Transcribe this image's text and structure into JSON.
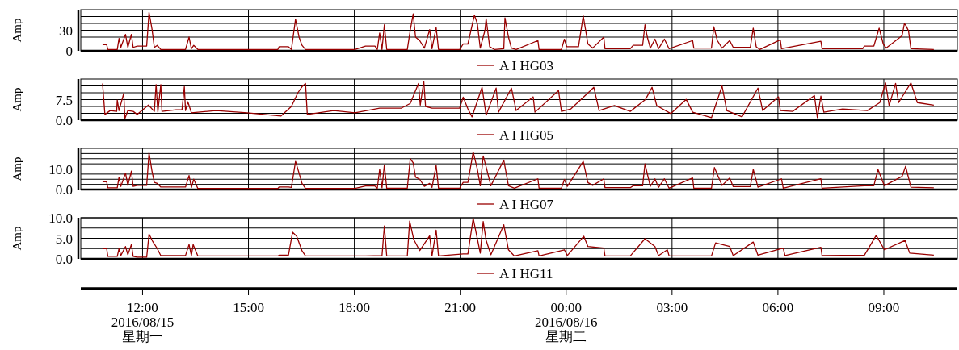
{
  "chart_data": [
    {
      "type": "line",
      "ylabel": "Amp",
      "xlim": [
        "2016-08-15T10:15",
        "2016-08-16T11:05"
      ],
      "ylim": [
        0,
        60
      ],
      "xticks": [
        "2016-08-15T12:00",
        "2016-08-15T15:00",
        "2016-08-15T18:00",
        "2016-08-15T21:00",
        "2016-08-16T00:00",
        "2016-08-16T03:00",
        "2016-08-16T06:00",
        "2016-08-16T09:00"
      ],
      "yticks": [
        {
          "value": 0,
          "label": "0"
        },
        {
          "value": 10,
          "label": null
        },
        {
          "value": 20,
          "label": null
        },
        {
          "value": 30,
          "label": "30"
        },
        {
          "value": 40,
          "label": null
        },
        {
          "value": 50,
          "label": null
        }
      ],
      "grid": true,
      "legend": "bottom",
      "tick_labels": "y",
      "series": [
        {
          "name": "A I HG03",
          "color": "#990000",
          "x": [
            "2016-08-15T10:52",
            "2016-08-15T10:59",
            "2016-08-15T11:01",
            "2016-08-15T11:17",
            "2016-08-15T11:20",
            "2016-08-15T11:23",
            "2016-08-15T11:31",
            "2016-08-15T11:35",
            "2016-08-15T11:41",
            "2016-08-15T11:44",
            "2016-08-15T11:51",
            "2016-08-15T12:07",
            "2016-08-15T12:11",
            "2016-08-15T12:16",
            "2016-08-15T12:20",
            "2016-08-15T12:25",
            "2016-08-15T12:31",
            "2016-08-15T13:13",
            "2016-08-15T13:19",
            "2016-08-15T13:23",
            "2016-08-15T13:27",
            "2016-08-15T13:34",
            "2016-08-15T15:50",
            "2016-08-15T15:52",
            "2016-08-15T16:08",
            "2016-08-15T16:13",
            "2016-08-15T16:20",
            "2016-08-15T16:26",
            "2016-08-15T16:31",
            "2016-08-15T16:37",
            "2016-08-15T18:01",
            "2016-08-15T18:19",
            "2016-08-15T18:35",
            "2016-08-15T18:39",
            "2016-08-15T18:43",
            "2016-08-15T18:47",
            "2016-08-15T18:51",
            "2016-08-15T18:55",
            "2016-08-15T19:30",
            "2016-08-15T19:35",
            "2016-08-15T19:40",
            "2016-08-15T19:44",
            "2016-08-15T19:51",
            "2016-08-15T19:59",
            "2016-08-15T20:08",
            "2016-08-15T20:12",
            "2016-08-15T20:19",
            "2016-08-15T20:23",
            "2016-08-15T20:59",
            "2016-08-15T21:05",
            "2016-08-15T21:13",
            "2016-08-15T21:24",
            "2016-08-15T21:29",
            "2016-08-15T21:34",
            "2016-08-15T21:42",
            "2016-08-15T21:44",
            "2016-08-15T21:50",
            "2016-08-15T21:58",
            "2016-08-15T22:14",
            "2016-08-15T22:16",
            "2016-08-15T22:22",
            "2016-08-15T22:27",
            "2016-08-15T22:35",
            "2016-08-15T23:12",
            "2016-08-15T23:14",
            "2016-08-15T23:52",
            "2016-08-15T23:57",
            "2016-08-16T00:01",
            "2016-08-16T00:21",
            "2016-08-16T00:29",
            "2016-08-16T00:37",
            "2016-08-16T00:45",
            "2016-08-16T01:04",
            "2016-08-16T01:06",
            "2016-08-16T01:49",
            "2016-08-16T01:54",
            "2016-08-16T02:10",
            "2016-08-16T02:14",
            "2016-08-16T02:18",
            "2016-08-16T02:23",
            "2016-08-16T02:31",
            "2016-08-16T02:37",
            "2016-08-16T02:47",
            "2016-08-16T02:55",
            "2016-08-16T03:35",
            "2016-08-16T03:37",
            "2016-08-16T04:07",
            "2016-08-16T04:11",
            "2016-08-16T04:17",
            "2016-08-16T04:25",
            "2016-08-16T04:38",
            "2016-08-16T04:44",
            "2016-08-16T05:13",
            "2016-08-16T05:18",
            "2016-08-16T05:23",
            "2016-08-16T05:29",
            "2016-08-16T06:04",
            "2016-08-16T06:06",
            "2016-08-16T07:13",
            "2016-08-16T07:15",
            "2016-08-16T08:24",
            "2016-08-16T08:27",
            "2016-08-16T08:43",
            "2016-08-16T08:52",
            "2016-08-16T08:59",
            "2016-08-16T09:04",
            "2016-08-16T09:31",
            "2016-08-16T09:35",
            "2016-08-16T09:38",
            "2016-08-16T09:42",
            "2016-08-16T09:46",
            "2016-08-16T10:25"
          ],
          "values": [
            9,
            9,
            2,
            2,
            18,
            5,
            24,
            5,
            24,
            5,
            7,
            7,
            56,
            32,
            5,
            8,
            2,
            2,
            20,
            3,
            8,
            2,
            2,
            6,
            6,
            2,
            46,
            20,
            8,
            2,
            2,
            7,
            7,
            2,
            26,
            2,
            38,
            2,
            2,
            30,
            54,
            20,
            15,
            4,
            31,
            3,
            34,
            2,
            2,
            10,
            10,
            52,
            40,
            4,
            30,
            47,
            6,
            2,
            3,
            48,
            20,
            4,
            2,
            15,
            2,
            2,
            17,
            6,
            6,
            51,
            10,
            4,
            20,
            3,
            3,
            8,
            8,
            38,
            20,
            4,
            17,
            3,
            17,
            3,
            15,
            4,
            4,
            35,
            15,
            4,
            15,
            5,
            5,
            33,
            6,
            2,
            16,
            3,
            14,
            3,
            3,
            7,
            7,
            33,
            10,
            4,
            22,
            40,
            36,
            29,
            3,
            2
          ]
        }
      ]
    },
    {
      "type": "line",
      "ylabel": "Amp",
      "xlim": [
        "2016-08-15T10:15",
        "2016-08-16T11:05"
      ],
      "ylim": [
        0,
        15
      ],
      "xticks": [
        "2016-08-15T12:00",
        "2016-08-15T15:00",
        "2016-08-15T18:00",
        "2016-08-15T21:00",
        "2016-08-16T00:00",
        "2016-08-16T03:00",
        "2016-08-16T06:00",
        "2016-08-16T09:00"
      ],
      "yticks": [
        {
          "value": 0,
          "label": "0.0"
        },
        {
          "value": 2.5,
          "label": null
        },
        {
          "value": 5,
          "label": null
        },
        {
          "value": 7.5,
          "label": "7.5"
        },
        {
          "value": 10,
          "label": null
        },
        {
          "value": 12.5,
          "label": null
        }
      ],
      "grid": true,
      "legend": "bottom",
      "tick_labels": "y",
      "series": [
        {
          "name": "A I HG05",
          "color": "#990000",
          "x": [
            "2016-08-15T10:52",
            "2016-08-15T10:56",
            "2016-08-15T11:05",
            "2016-08-15T11:16",
            "2016-08-15T11:17",
            "2016-08-15T11:20",
            "2016-08-15T11:28",
            "2016-08-15T11:30",
            "2016-08-15T11:35",
            "2016-08-15T11:44",
            "2016-08-15T11:51",
            "2016-08-15T12:10",
            "2016-08-15T12:20",
            "2016-08-15T12:23",
            "2016-08-15T12:26",
            "2016-08-15T12:31",
            "2016-08-15T12:33",
            "2016-08-15T12:57",
            "2016-08-15T13:07",
            "2016-08-15T13:11",
            "2016-08-15T13:13",
            "2016-08-15T13:17",
            "2016-08-15T13:23",
            "2016-08-15T14:05",
            "2016-08-15T14:58",
            "2016-08-15T15:55",
            "2016-08-15T16:13",
            "2016-08-15T16:24",
            "2016-08-15T16:31",
            "2016-08-15T16:37",
            "2016-08-15T16:40",
            "2016-08-15T17:25",
            "2016-08-15T18:01",
            "2016-08-15T18:43",
            "2016-08-15T19:20",
            "2016-08-15T19:35",
            "2016-08-15T19:49",
            "2016-08-15T19:52",
            "2016-08-15T19:58",
            "2016-08-15T20:01",
            "2016-08-15T20:12",
            "2016-08-15T20:59",
            "2016-08-15T21:05",
            "2016-08-15T21:13",
            "2016-08-15T21:20",
            "2016-08-15T21:37",
            "2016-08-15T21:44",
            "2016-08-15T22:01",
            "2016-08-15T22:05",
            "2016-08-15T22:27",
            "2016-08-15T22:35",
            "2016-08-15T23:04",
            "2016-08-15T23:07",
            "2016-08-15T23:47",
            "2016-08-15T23:52",
            "2016-08-16T00:08",
            "2016-08-16T00:40",
            "2016-08-16T00:47",
            "2016-08-16T00:56",
            "2016-08-16T01:22",
            "2016-08-16T01:49",
            "2016-08-16T02:15",
            "2016-08-16T02:26",
            "2016-08-16T02:34",
            "2016-08-16T02:58",
            "2016-08-16T03:24",
            "2016-08-16T03:35",
            "2016-08-16T04:07",
            "2016-08-16T04:25",
            "2016-08-16T04:33",
            "2016-08-16T04:59",
            "2016-08-16T05:26",
            "2016-08-16T05:34",
            "2016-08-16T06:01",
            "2016-08-16T06:04",
            "2016-08-16T06:25",
            "2016-08-16T07:02",
            "2016-08-16T07:07",
            "2016-08-16T07:13",
            "2016-08-16T07:18",
            "2016-08-16T07:50",
            "2016-08-16T08:32",
            "2016-08-16T08:53",
            "2016-08-16T09:03",
            "2016-08-16T09:09",
            "2016-08-16T09:20",
            "2016-08-16T09:25",
            "2016-08-16T09:46",
            "2016-08-16T09:57",
            "2016-08-16T10:25"
          ],
          "values": [
            13.4,
            2.1,
            3.5,
            3.2,
            7.3,
            3.5,
            9.8,
            0.6,
            3.5,
            3.2,
            2.1,
            5.5,
            3.2,
            13,
            3.0,
            13,
            3.2,
            3.8,
            3.8,
            12.2,
            3.5,
            6.7,
            2.7,
            3.5,
            2.7,
            1.5,
            5,
            10,
            12.2,
            13.4,
            2.1,
            3.5,
            2.7,
            4.4,
            4.4,
            6.1,
            13.4,
            5.5,
            14.2,
            5,
            4.4,
            4.4,
            8.4,
            4.1,
            1.2,
            12,
            1.8,
            11.7,
            2.9,
            11.7,
            3.5,
            8.5,
            2.9,
            10.8,
            3.2,
            4.1,
            10.5,
            12,
            3.5,
            5.3,
            3.2,
            7.6,
            12,
            5.3,
            2.4,
            7.6,
            2.9,
            0.9,
            12.5,
            3.5,
            1.2,
            11.7,
            3.5,
            8.5,
            3.5,
            3.2,
            9,
            0.9,
            8.8,
            2.9,
            4.1,
            3.5,
            6.4,
            13.6,
            5.3,
            13.4,
            6.4,
            13.6,
            6.4,
            5.5
          ]
        }
      ]
    },
    {
      "type": "line",
      "ylabel": "Amp",
      "xlim": [
        "2016-08-15T10:15",
        "2016-08-16T11:05"
      ],
      "ylim": [
        0,
        20
      ],
      "xticks": [
        "2016-08-15T12:00",
        "2016-08-15T15:00",
        "2016-08-15T18:00",
        "2016-08-15T21:00",
        "2016-08-16T00:00",
        "2016-08-16T03:00",
        "2016-08-16T06:00",
        "2016-08-16T09:00"
      ],
      "yticks": [
        {
          "value": 0,
          "label": "0.0"
        },
        {
          "value": 2.5,
          "label": null
        },
        {
          "value": 5,
          "label": null
        },
        {
          "value": 7.5,
          "label": null
        },
        {
          "value": 10,
          "label": "10.0"
        },
        {
          "value": 12.5,
          "label": null
        },
        {
          "value": 15,
          "label": null
        },
        {
          "value": 17.5,
          "label": null
        }
      ],
      "grid": true,
      "legend": "bottom",
      "tick_labels": "y",
      "series": [
        {
          "name": "A I HG07",
          "color": "#990000",
          "x": [
            "2016-08-15T10:52",
            "2016-08-15T10:59",
            "2016-08-15T11:01",
            "2016-08-15T11:17",
            "2016-08-15T11:20",
            "2016-08-15T11:23",
            "2016-08-15T11:31",
            "2016-08-15T11:35",
            "2016-08-15T11:41",
            "2016-08-15T11:44",
            "2016-08-15T11:51",
            "2016-08-15T12:07",
            "2016-08-15T12:11",
            "2016-08-15T12:16",
            "2016-08-15T12:20",
            "2016-08-15T12:25",
            "2016-08-15T12:31",
            "2016-08-15T13:13",
            "2016-08-15T13:19",
            "2016-08-15T13:23",
            "2016-08-15T13:27",
            "2016-08-15T13:34",
            "2016-08-15T15:50",
            "2016-08-15T15:52",
            "2016-08-15T16:08",
            "2016-08-15T16:13",
            "2016-08-15T16:20",
            "2016-08-15T16:26",
            "2016-08-15T16:31",
            "2016-08-15T16:37",
            "2016-08-15T18:01",
            "2016-08-15T18:19",
            "2016-08-15T18:35",
            "2016-08-15T18:39",
            "2016-08-15T18:43",
            "2016-08-15T18:47",
            "2016-08-15T18:51",
            "2016-08-15T18:55",
            "2016-08-15T19:30",
            "2016-08-15T19:35",
            "2016-08-15T19:40",
            "2016-08-15T19:44",
            "2016-08-15T19:51",
            "2016-08-15T19:59",
            "2016-08-15T20:08",
            "2016-08-15T20:12",
            "2016-08-15T20:19",
            "2016-08-15T20:23",
            "2016-08-15T20:59",
            "2016-08-15T21:05",
            "2016-08-15T21:13",
            "2016-08-15T21:22",
            "2016-08-15T21:29",
            "2016-08-15T21:34",
            "2016-08-15T21:39",
            "2016-08-15T21:44",
            "2016-08-15T21:52",
            "2016-08-15T22:14",
            "2016-08-15T22:22",
            "2016-08-15T22:32",
            "2016-08-15T23:12",
            "2016-08-15T23:14",
            "2016-08-15T23:52",
            "2016-08-15T23:57",
            "2016-08-16T00:02",
            "2016-08-16T00:29",
            "2016-08-16T00:37",
            "2016-08-16T00:45",
            "2016-08-16T01:04",
            "2016-08-16T01:06",
            "2016-08-16T01:49",
            "2016-08-16T01:54",
            "2016-08-16T02:10",
            "2016-08-16T02:14",
            "2016-08-16T02:23",
            "2016-08-16T02:31",
            "2016-08-16T02:37",
            "2016-08-16T02:47",
            "2016-08-16T02:55",
            "2016-08-16T03:35",
            "2016-08-16T03:37",
            "2016-08-16T04:07",
            "2016-08-16T04:12",
            "2016-08-16T04:25",
            "2016-08-16T04:38",
            "2016-08-16T04:44",
            "2016-08-16T05:13",
            "2016-08-16T05:18",
            "2016-08-16T05:26",
            "2016-08-16T06:06",
            "2016-08-16T06:09",
            "2016-08-16T07:13",
            "2016-08-16T07:15",
            "2016-08-16T08:27",
            "2016-08-16T08:43",
            "2016-08-16T08:50",
            "2016-08-16T09:01",
            "2016-08-16T09:31",
            "2016-08-16T09:37",
            "2016-08-16T09:46",
            "2016-08-16T10:25"
          ],
          "values": [
            3.8,
            3.8,
            0.8,
            0.8,
            6,
            1.5,
            8,
            2,
            9,
            1.5,
            2,
            2,
            17.8,
            9,
            3.5,
            3,
            1.2,
            1.2,
            6.8,
            1,
            5,
            0.5,
            0.5,
            1.2,
            1.2,
            1,
            13.7,
            8,
            3,
            0.5,
            0.5,
            1.7,
            1.7,
            0.6,
            9.8,
            0.8,
            12,
            0.6,
            0.6,
            15,
            13,
            6,
            5,
            1.5,
            3,
            1,
            11.7,
            0.6,
            0.6,
            3.5,
            3.5,
            18.3,
            10,
            1.8,
            16.3,
            11,
            1.8,
            14.3,
            1.8,
            0.6,
            5.2,
            0.6,
            0.6,
            4.9,
            1.5,
            13.7,
            3.4,
            2,
            5.2,
            0.9,
            0.9,
            1.8,
            1.8,
            12.5,
            1.5,
            5.2,
            1,
            5.2,
            0.6,
            5.6,
            0.6,
            0.6,
            10.7,
            2,
            5.6,
            1.4,
            1.4,
            9.8,
            1.1,
            5.2,
            0.6,
            5.2,
            0.6,
            1.8,
            1.8,
            9.8,
            1.8,
            6.4,
            11.3,
            1.1,
            0.8
          ]
        }
      ]
    },
    {
      "type": "line",
      "ylabel": "Amp",
      "xlim": [
        "2016-08-15T10:15",
        "2016-08-16T11:05"
      ],
      "ylim": [
        0,
        10
      ],
      "xticks": [
        {
          "value": "2016-08-15T12:00",
          "label": "12:00\n2016/08/15\n星期一"
        },
        {
          "value": "2016-08-15T15:00",
          "label": "15:00"
        },
        {
          "value": "2016-08-15T18:00",
          "label": "18:00"
        },
        {
          "value": "2016-08-15T21:00",
          "label": "21:00"
        },
        {
          "value": "2016-08-16T00:00",
          "label": "00:00\n2016/08/16\n星期二"
        },
        {
          "value": "2016-08-16T03:00",
          "label": "03:00"
        },
        {
          "value": "2016-08-16T06:00",
          "label": "06:00"
        },
        {
          "value": "2016-08-16T09:00",
          "label": "09:00"
        }
      ],
      "yticks": [
        {
          "value": 0,
          "label": "0.0"
        },
        {
          "value": 2.5,
          "label": null
        },
        {
          "value": 5,
          "label": "5.0"
        },
        {
          "value": 7.5,
          "label": null
        },
        {
          "value": 10,
          "label": "10.0"
        }
      ],
      "grid": true,
      "legend": "bottom",
      "series": [
        {
          "name": "A I HG11",
          "color": "#990000",
          "x": [
            "2016-08-15T10:52",
            "2016-08-15T10:59",
            "2016-08-15T11:01",
            "2016-08-15T11:17",
            "2016-08-15T11:20",
            "2016-08-15T11:23",
            "2016-08-15T11:31",
            "2016-08-15T11:35",
            "2016-08-15T11:41",
            "2016-08-15T11:44",
            "2016-08-15T11:51",
            "2016-08-15T12:07",
            "2016-08-15T12:11",
            "2016-08-15T12:17",
            "2016-08-15T12:25",
            "2016-08-15T12:31",
            "2016-08-15T13:13",
            "2016-08-15T13:19",
            "2016-08-15T13:23",
            "2016-08-15T13:26",
            "2016-08-15T13:34",
            "2016-08-15T15:50",
            "2016-08-15T15:52",
            "2016-08-15T16:08",
            "2016-08-15T16:15",
            "2016-08-15T16:22",
            "2016-08-15T16:31",
            "2016-08-15T16:37",
            "2016-08-15T18:19",
            "2016-08-15T18:47",
            "2016-08-15T18:51",
            "2016-08-15T18:55",
            "2016-08-15T19:30",
            "2016-08-15T19:34",
            "2016-08-15T19:41",
            "2016-08-15T19:51",
            "2016-08-15T20:08",
            "2016-08-15T20:12",
            "2016-08-15T20:19",
            "2016-08-15T20:23",
            "2016-08-15T21:05",
            "2016-08-15T21:13",
            "2016-08-15T21:22",
            "2016-08-15T21:34",
            "2016-08-15T21:39",
            "2016-08-15T21:44",
            "2016-08-15T21:52",
            "2016-08-15T22:14",
            "2016-08-15T22:22",
            "2016-08-15T22:32",
            "2016-08-15T23:12",
            "2016-08-15T23:14",
            "2016-08-15T23:57",
            "2016-08-16T00:02",
            "2016-08-16T00:30",
            "2016-08-16T00:37",
            "2016-08-16T01:04",
            "2016-08-16T01:06",
            "2016-08-16T01:49",
            "2016-08-16T02:14",
            "2016-08-16T02:31",
            "2016-08-16T02:37",
            "2016-08-16T02:52",
            "2016-08-16T02:55",
            "2016-08-16T04:07",
            "2016-08-16T04:14",
            "2016-08-16T04:38",
            "2016-08-16T04:44",
            "2016-08-16T05:18",
            "2016-08-16T05:26",
            "2016-08-16T06:09",
            "2016-08-16T06:12",
            "2016-08-16T07:13",
            "2016-08-16T07:15",
            "2016-08-16T08:27",
            "2016-08-16T08:47",
            "2016-08-16T09:01",
            "2016-08-16T09:36",
            "2016-08-16T09:44",
            "2016-08-16T10:25"
          ],
          "values": [
            2.5,
            2.5,
            0.6,
            0.6,
            2.5,
            0.8,
            3,
            1,
            3.5,
            0.6,
            0.4,
            0.4,
            6,
            4.3,
            2.5,
            0.8,
            0.8,
            3.5,
            0.8,
            3.5,
            0.7,
            0.7,
            0.9,
            0.9,
            6.5,
            5.5,
            2,
            0.7,
            0.7,
            0.8,
            8,
            0.7,
            0.7,
            9.2,
            4.7,
            2,
            5.6,
            0.7,
            7,
            0.7,
            1.2,
            1.2,
            9.9,
            1.4,
            9.1,
            4.5,
            1,
            8.3,
            2.2,
            0.7,
            2,
            0.7,
            2.2,
            0.8,
            5.5,
            3,
            2.6,
            0.7,
            0.7,
            4.9,
            3,
            0.8,
            2.2,
            0.7,
            0.7,
            3.9,
            3,
            0.8,
            4.1,
            0.9,
            2.6,
            0.8,
            2.8,
            0.8,
            0.9,
            5.7,
            2.2,
            4.5,
            1.4,
            0.9
          ]
        }
      ]
    }
  ]
}
